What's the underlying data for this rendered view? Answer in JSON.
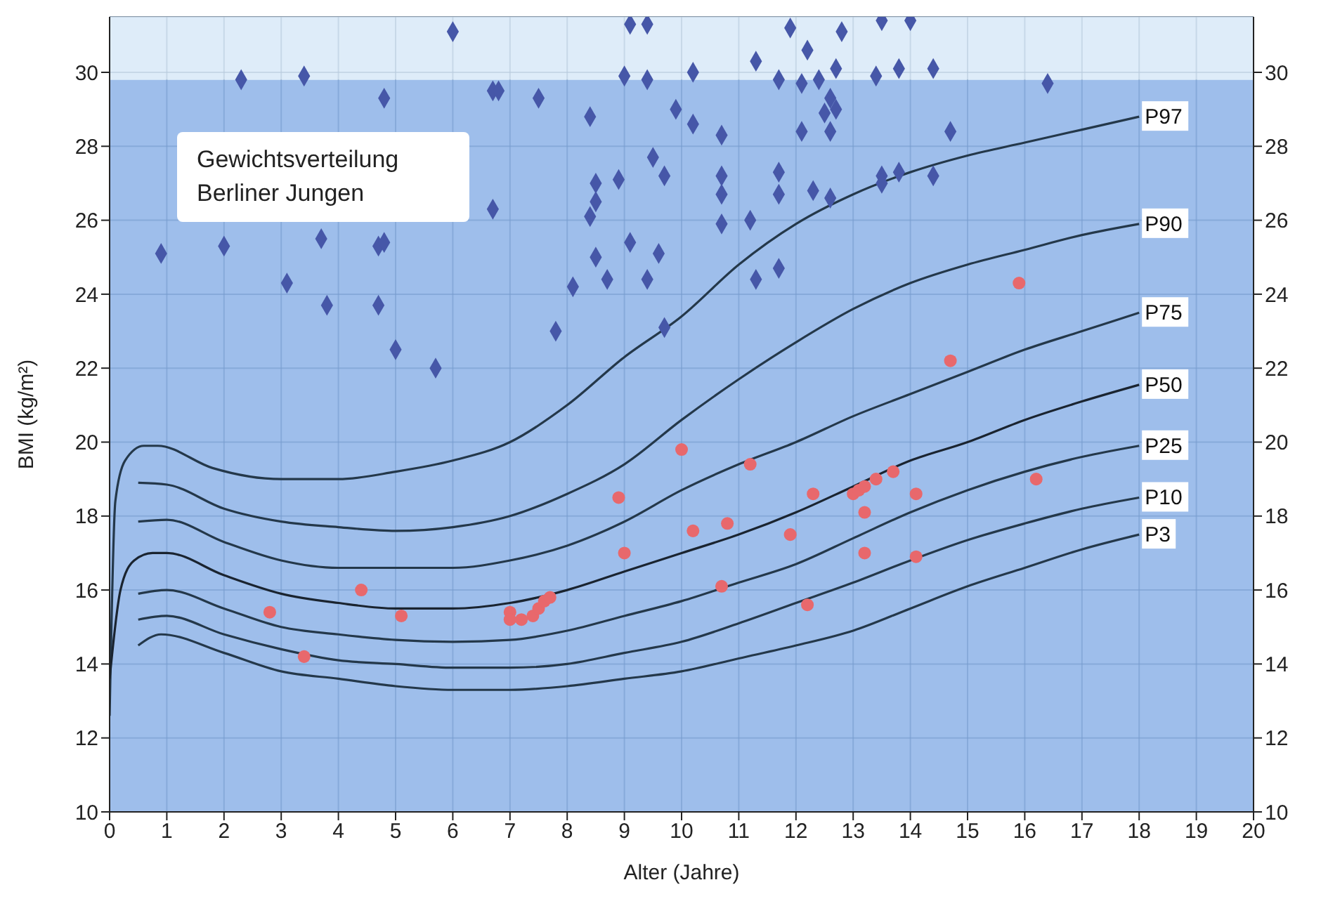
{
  "chart_data": {
    "type": "scatter",
    "title": "Gewichtsverteilung Berliner Jungen",
    "xlabel": "Alter (Jahre)",
    "ylabel": "BMI (kg/m²)",
    "xlim": [
      0,
      20
    ],
    "xticks": [
      0,
      1,
      2,
      3,
      4,
      5,
      6,
      7,
      8,
      9,
      10,
      11,
      12,
      13,
      14,
      15,
      16,
      17,
      18,
      19,
      20
    ],
    "ylim": [
      10,
      31.5
    ],
    "yticks": [
      10,
      12,
      14,
      16,
      18,
      20,
      22,
      24,
      26,
      28,
      30
    ],
    "y2lim": [
      10,
      31.5
    ],
    "y2ticks": [
      10,
      12,
      14,
      16,
      18,
      20,
      22,
      24,
      26,
      28,
      30
    ],
    "grid": true,
    "bands": [
      {
        "axis": "y",
        "from": 10,
        "to": 29.8,
        "color": "#86aee6"
      },
      {
        "axis": "y",
        "from": 29.8,
        "to": 31.5,
        "color": "#d6e7f7"
      }
    ],
    "series": [
      {
        "type": "line",
        "name": "P97",
        "color": "#24384a",
        "marker": "none",
        "x": [
          0,
          0.1,
          0.27,
          0.6,
          0.84,
          1.8,
          3,
          4,
          5,
          6,
          7,
          8,
          9,
          10,
          11,
          12,
          13,
          14,
          15,
          16,
          17,
          18
        ],
        "values": [
          12.6,
          18.4,
          19.5,
          19.9,
          19.9,
          19.3,
          19.0,
          19.0,
          19.2,
          19.5,
          20.0,
          21.0,
          22.3,
          23.4,
          24.8,
          25.9,
          26.7,
          27.3,
          27.75,
          28.1,
          28.45,
          28.8
        ]
      },
      {
        "type": "line",
        "name": "P90",
        "color": "#24384a",
        "marker": "none",
        "x": [
          0.5,
          1,
          2,
          3,
          4,
          5,
          6,
          7,
          8,
          9,
          10,
          11,
          12,
          13,
          14,
          15,
          16,
          17,
          18
        ],
        "values": [
          18.9,
          18.85,
          18.2,
          17.85,
          17.7,
          17.6,
          17.7,
          18.0,
          18.6,
          19.4,
          20.6,
          21.7,
          22.7,
          23.6,
          24.3,
          24.8,
          25.2,
          25.6,
          25.9
        ]
      },
      {
        "type": "line",
        "name": "P75",
        "color": "#24384a",
        "marker": "none",
        "x": [
          0.5,
          1,
          2,
          3,
          4,
          5,
          6,
          7,
          8,
          9,
          10,
          11,
          12,
          13,
          14,
          15,
          16,
          17,
          18
        ],
        "values": [
          17.85,
          17.9,
          17.3,
          16.8,
          16.6,
          16.6,
          16.6,
          16.8,
          17.2,
          17.85,
          18.7,
          19.4,
          20.0,
          20.7,
          21.3,
          21.9,
          22.5,
          23.0,
          23.5
        ]
      },
      {
        "type": "line",
        "name": "P50",
        "color": "#1a2430",
        "marker": "none",
        "x": [
          0,
          0.19,
          0.43,
          0.75,
          1,
          2,
          3,
          4,
          5,
          6,
          7,
          8,
          9,
          10,
          11,
          12,
          13,
          14,
          15,
          16,
          17,
          18
        ],
        "values": [
          13.6,
          16.0,
          16.8,
          17.0,
          17.0,
          16.4,
          15.9,
          15.65,
          15.5,
          15.5,
          15.65,
          16.0,
          16.5,
          17.0,
          17.5,
          18.1,
          18.8,
          19.5,
          20.0,
          20.6,
          21.1,
          21.55
        ]
      },
      {
        "type": "line",
        "name": "P25",
        "color": "#24384a",
        "marker": "none",
        "x": [
          0.5,
          1,
          2,
          3,
          4,
          5,
          6,
          7,
          8,
          9,
          10,
          11,
          12,
          13,
          14,
          15,
          16,
          17,
          18
        ],
        "values": [
          15.9,
          16.0,
          15.5,
          15.0,
          14.8,
          14.65,
          14.6,
          14.65,
          14.9,
          15.3,
          15.7,
          16.2,
          16.7,
          17.4,
          18.1,
          18.7,
          19.2,
          19.6,
          19.9
        ]
      },
      {
        "type": "line",
        "name": "P10",
        "color": "#24384a",
        "marker": "none",
        "x": [
          0.5,
          1,
          2,
          3,
          4,
          5,
          6,
          7,
          8,
          9,
          10,
          11,
          12,
          13,
          14,
          15,
          16,
          17,
          18
        ],
        "values": [
          15.2,
          15.3,
          14.8,
          14.4,
          14.1,
          14.0,
          13.9,
          13.9,
          14.0,
          14.3,
          14.6,
          15.1,
          15.65,
          16.2,
          16.8,
          17.35,
          17.8,
          18.2,
          18.5
        ]
      },
      {
        "type": "line",
        "name": "P3",
        "color": "#24384a",
        "marker": "none",
        "x": [
          0.5,
          0.9,
          2,
          3,
          4,
          5,
          6,
          7,
          8,
          9,
          10,
          11,
          12,
          13,
          14,
          15,
          16,
          17,
          18
        ],
        "values": [
          14.5,
          14.8,
          14.3,
          13.8,
          13.6,
          13.4,
          13.3,
          13.3,
          13.4,
          13.6,
          13.8,
          14.15,
          14.5,
          14.9,
          15.5,
          16.1,
          16.6,
          17.1,
          17.5
        ]
      },
      {
        "color": "#4657a8",
        "marker": "diamond",
        "x": [
          6.0,
          9.1,
          9.4,
          2.3,
          3.4,
          9.0,
          9.4,
          4.8,
          6.7,
          6.8,
          7.5,
          8.4,
          9.9,
          9.5,
          9.7,
          8.5,
          8.9,
          8.5,
          8.4,
          6.7,
          0.9,
          2.0,
          3.7,
          4.7,
          4.8,
          9.1,
          8.5,
          9.6,
          8.7,
          9.4,
          3.1,
          8.1,
          3.8,
          4.7,
          7.8,
          9.7,
          5.0,
          5.7,
          11.9,
          12.8,
          13.5,
          14.0,
          12.2,
          11.3,
          10.2,
          12.7,
          13.8,
          14.4,
          11.7,
          12.1,
          12.4,
          13.4,
          16.4,
          12.6,
          12.7,
          12.5,
          10.2,
          10.7,
          12.1,
          12.6,
          14.7,
          10.7,
          11.7,
          10.7,
          11.7,
          12.3,
          12.6,
          13.5,
          13.5,
          13.8,
          14.4,
          10.7,
          11.2,
          11.3,
          11.7
        ],
        "values": [
          31.1,
          31.3,
          31.3,
          29.8,
          29.9,
          29.9,
          29.8,
          29.3,
          29.5,
          29.5,
          29.3,
          28.8,
          29.0,
          27.7,
          27.2,
          27.0,
          27.1,
          26.5,
          26.1,
          26.3,
          25.1,
          25.3,
          25.5,
          25.3,
          25.4,
          25.4,
          25.0,
          25.1,
          24.4,
          24.4,
          24.3,
          24.2,
          23.7,
          23.7,
          23.0,
          23.1,
          22.5,
          22.0,
          31.2,
          31.1,
          31.4,
          31.4,
          30.6,
          30.3,
          30.0,
          30.1,
          30.1,
          30.1,
          29.8,
          29.7,
          29.8,
          29.9,
          29.7,
          29.3,
          29.0,
          28.9,
          28.6,
          28.3,
          28.4,
          28.4,
          28.4,
          27.2,
          27.3,
          26.7,
          26.7,
          26.8,
          26.6,
          27.2,
          27.0,
          27.3,
          27.2,
          25.9,
          26.0,
          24.4,
          24.7
        ]
      },
      {
        "color": "#e8686c",
        "marker": "circle",
        "x": [
          15.9,
          14.7,
          10.0,
          8.9,
          9.0,
          2.8,
          3.4,
          4.4,
          5.1,
          7.0,
          7.0,
          7.2,
          7.4,
          7.5,
          7.6,
          7.7,
          11.2,
          10.2,
          10.8,
          10.7,
          11.9,
          12.3,
          12.2,
          13.0,
          13.1,
          13.2,
          13.4,
          13.7,
          13.2,
          13.2,
          14.1,
          14.1,
          16.2
        ],
        "values": [
          24.3,
          22.2,
          19.8,
          18.5,
          17.0,
          15.4,
          14.2,
          16.0,
          15.3,
          15.4,
          15.2,
          15.2,
          15.3,
          15.5,
          15.7,
          15.8,
          19.4,
          17.6,
          17.8,
          16.1,
          17.5,
          18.6,
          15.6,
          18.6,
          18.7,
          18.8,
          19.0,
          19.2,
          18.1,
          17.0,
          18.6,
          16.9,
          19.0
        ]
      }
    ]
  }
}
